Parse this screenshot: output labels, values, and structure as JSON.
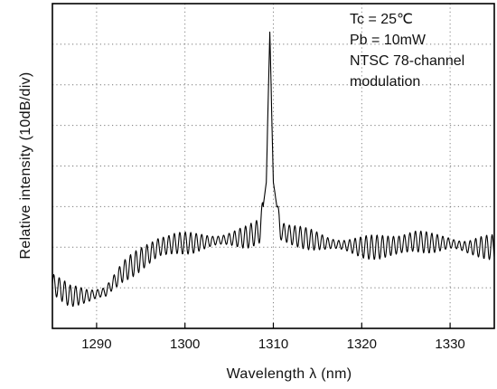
{
  "chart_data": {
    "type": "line",
    "xlabel": "Wavelength λ (nm)",
    "ylabel": "Relative intensity (10dB/div)",
    "xlim": [
      1285,
      1335
    ],
    "ylim": [
      -80,
      0
    ],
    "x_ticks": [
      1290,
      1300,
      1310,
      1320,
      1330
    ],
    "y_divisions_db": 10,
    "grid": true,
    "annotations": [
      "Tc = 25℃",
      "Pb = 10mW",
      "NTSC 78-channel",
      "modulation"
    ],
    "peak": {
      "x": 1309.6,
      "y": -7
    },
    "series": [
      {
        "x": [
          1285,
          1287,
          1289,
          1291,
          1293,
          1295,
          1297,
          1299,
          1301,
          1303,
          1305,
          1307,
          1308.5,
          1309.2,
          1309.6,
          1310,
          1310.8,
          1312,
          1314,
          1316,
          1318,
          1320,
          1322,
          1324,
          1326,
          1328,
          1330,
          1332,
          1335
        ],
        "y": [
          -69,
          -72,
          -72,
          -71,
          -66,
          -63,
          -60,
          -59,
          -59,
          -58.5,
          -58,
          -57.5,
          -56,
          -44,
          -7,
          -44,
          -56,
          -57,
          -58,
          -59,
          -59.5,
          -60,
          -60,
          -59.5,
          -58.5,
          -59,
          -59,
          -60,
          -60
        ]
      }
    ]
  }
}
